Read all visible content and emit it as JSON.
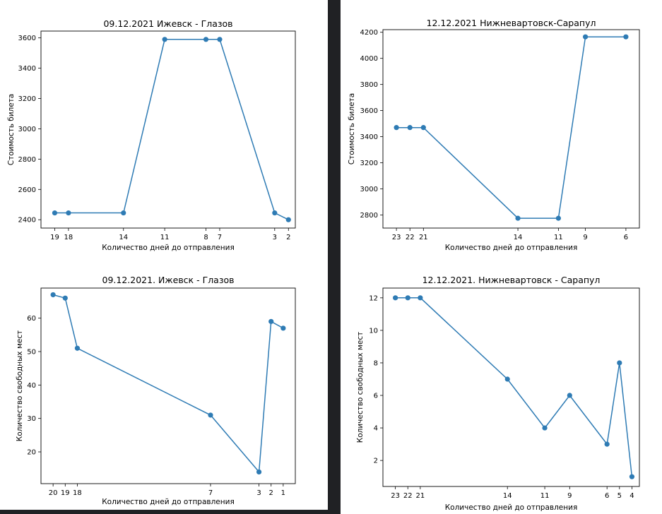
{
  "chart_data": [
    {
      "type": "line",
      "title": "09.12.2021 Ижевск - Глазов",
      "xlabel": "Количество дней до отправления",
      "ylabel": "Стоимость билета",
      "x": [
        19,
        18,
        14,
        11,
        8,
        7,
        3,
        2
      ],
      "x_ticks": [
        "19",
        "18",
        "14",
        "11",
        "8",
        "7",
        "3",
        "2"
      ],
      "values": [
        2445,
        2445,
        2445,
        3590,
        3590,
        3590,
        2445,
        2400
      ],
      "y_ticks": [
        "2400",
        "2600",
        "2800",
        "3000",
        "3200",
        "3400",
        "3600"
      ],
      "x_reversed": true,
      "color": "#2e7bb4"
    },
    {
      "type": "line",
      "title": "12.12.2021 Нижневартовск-Сарапул",
      "xlabel": "Количество дней до отправления",
      "ylabel": "Стоимость билета",
      "x": [
        23,
        22,
        21,
        14,
        11,
        9,
        6
      ],
      "x_ticks": [
        "23",
        "22",
        "21",
        "14",
        "11",
        "9",
        "6"
      ],
      "values": [
        3470,
        3470,
        3470,
        2775,
        2775,
        4165,
        4165
      ],
      "y_ticks": [
        "2800",
        "3000",
        "3200",
        "3400",
        "3600",
        "3800",
        "4000",
        "4200"
      ],
      "x_reversed": true,
      "color": "#2e7bb4"
    },
    {
      "type": "line",
      "title": "09.12.2021. Ижевск - Глазов",
      "xlabel": "Количество дней до отправления",
      "ylabel": "Количество свободных мест",
      "x": [
        20,
        19,
        18,
        7,
        3,
        2,
        1
      ],
      "x_ticks": [
        "20",
        "19",
        "18",
        "7",
        "3",
        "2",
        "1"
      ],
      "values": [
        67,
        66,
        51,
        31,
        14,
        59,
        57
      ],
      "y_ticks": [
        "20",
        "30",
        "40",
        "50",
        "60"
      ],
      "x_reversed": true,
      "color": "#2e7bb4"
    },
    {
      "type": "line",
      "title": "12.12.2021. Нижневартовск - Сарапул",
      "xlabel": "Количество дней до отправления",
      "ylabel": "Количество свободных мест",
      "x": [
        23,
        22,
        21,
        14,
        11,
        9,
        6,
        5,
        4
      ],
      "x_ticks": [
        "23",
        "22",
        "21",
        "14",
        "11",
        "9",
        "6",
        "5",
        "4"
      ],
      "values": [
        12,
        12,
        12,
        7,
        4,
        6,
        3,
        8,
        1
      ],
      "y_ticks": [
        "2",
        "4",
        "6",
        "8",
        "10",
        "12"
      ],
      "x_reversed": true,
      "color": "#2e7bb4"
    }
  ]
}
